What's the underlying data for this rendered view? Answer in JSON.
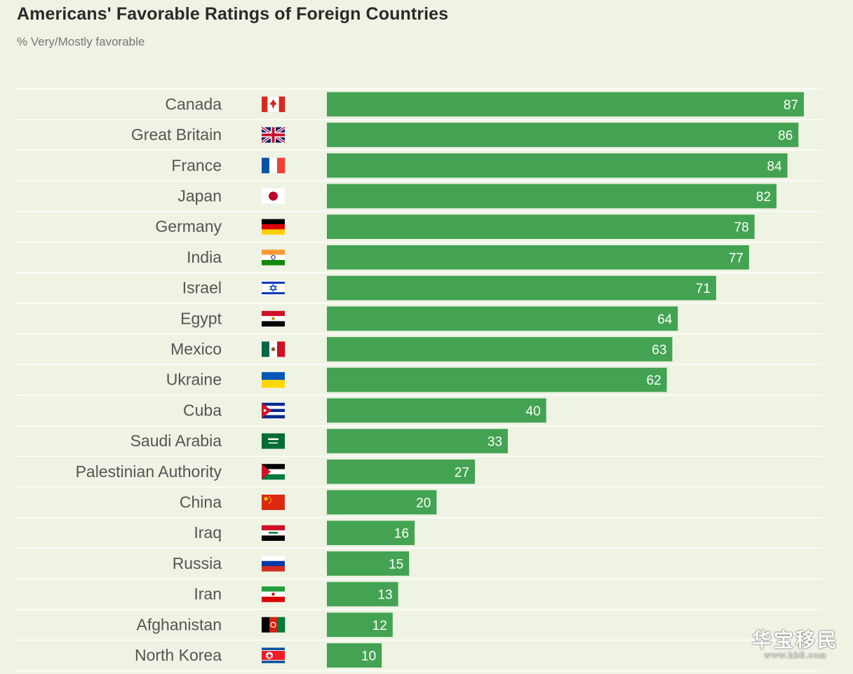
{
  "chart_data": {
    "type": "bar",
    "orientation": "horizontal",
    "title": "Americans' Favorable Ratings of Foreign Countries",
    "subtitle": "% Very/Mostly favorable",
    "categories": [
      "Canada",
      "Great Britain",
      "France",
      "Japan",
      "Germany",
      "India",
      "Israel",
      "Egypt",
      "Mexico",
      "Ukraine",
      "Cuba",
      "Saudi Arabia",
      "Palestinian Authority",
      "China",
      "Iraq",
      "Russia",
      "Iran",
      "Afghanistan",
      "North Korea"
    ],
    "values": [
      87,
      86,
      84,
      82,
      78,
      77,
      71,
      64,
      63,
      62,
      40,
      33,
      27,
      20,
      16,
      15,
      13,
      12,
      10
    ],
    "flag_icons": [
      "canada-flag-icon",
      "great-britain-flag-icon",
      "france-flag-icon",
      "japan-flag-icon",
      "germany-flag-icon",
      "india-flag-icon",
      "israel-flag-icon",
      "egypt-flag-icon",
      "mexico-flag-icon",
      "ukraine-flag-icon",
      "cuba-flag-icon",
      "saudi-arabia-flag-icon",
      "palestinian-authority-flag-icon",
      "china-flag-icon",
      "iraq-flag-icon",
      "russia-flag-icon",
      "iran-flag-icon",
      "afghanistan-flag-icon",
      "north-korea-flag-icon"
    ],
    "xlim": [
      0,
      87
    ],
    "grid": true,
    "bar_color": "#43a352",
    "label_color": "#ffffff"
  },
  "watermark": {
    "main": "华宝移民",
    "sub": "www.hb8.com"
  }
}
